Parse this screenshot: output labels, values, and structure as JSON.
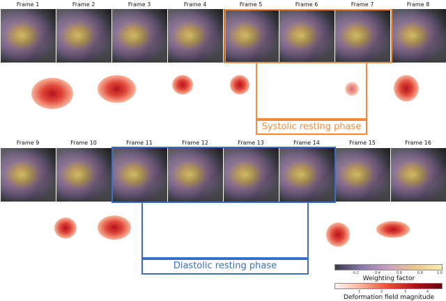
{
  "row1_frames": [
    "Frame 1",
    "Frame 2",
    "Frame 3",
    "Frame 4",
    "Frame 5",
    "Frame 6",
    "Frame 7",
    "Frame 8"
  ],
  "row2_frames": [
    "Frame 9",
    "Frame 10",
    "Frame 11",
    "Frame 12",
    "Frame 13",
    "Frame 14",
    "Frame 15",
    "Frame 16"
  ],
  "systolic_label": "Systolic resting phase",
  "diastolic_label": "Diastolic resting phase",
  "colors": {
    "systolic": "#f08a3c",
    "diastolic": "#3b6fc4"
  },
  "weighting_colorbar": {
    "title": "Weighting factor",
    "ticks": [
      "0.2",
      "0.4",
      "0.6",
      "0.8",
      "1.0"
    ]
  },
  "deformation_colorbar": {
    "title": "Deformation field magnitude",
    "ticks": [
      "1",
      "2",
      "3",
      "4"
    ]
  }
}
